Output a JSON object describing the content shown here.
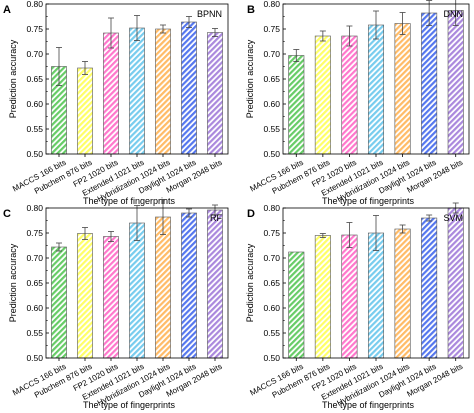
{
  "figure": {
    "shared_categories": [
      "MACCS 166 bits",
      "Pubchem 876 bits",
      "FP2 1020 bits",
      "Extended 1021 bits",
      "Hybridization 1024 bits",
      "Daylight 1024 bits",
      "Morgan 2048 bits"
    ],
    "bar_colors": [
      "#66cc66",
      "#ffff66",
      "#ff77cc",
      "#77ccee",
      "#ffbb66",
      "#5577ee",
      "#aa88dd"
    ],
    "hatch": "diagonal"
  },
  "chart_data": [
    {
      "panel_letter": "A",
      "model_label": "BPNN",
      "type": "bar",
      "categories": [
        "MACCS 166 bits",
        "Pubchem 876 bits",
        "FP2 1020 bits",
        "Extended 1021 bits",
        "Hybridization 1024 bits",
        "Daylight 1024 bits",
        "Morgan 2048 bits"
      ],
      "values": [
        0.675,
        0.672,
        0.742,
        0.752,
        0.75,
        0.764,
        0.743
      ],
      "errors": [
        0.038,
        0.013,
        0.03,
        0.025,
        0.008,
        0.011,
        0.008
      ],
      "xlabel": "The type of fingerprints",
      "ylabel": "Prediction accuracy",
      "ylim": [
        0.5,
        0.8
      ],
      "yticks": [
        "0.50",
        "0.55",
        "0.60",
        "0.65",
        "0.70",
        "0.75",
        "0.80"
      ],
      "grid": false
    },
    {
      "panel_letter": "B",
      "model_label": "DNN",
      "type": "bar",
      "categories": [
        "MACCS 166 bits",
        "Pubchem 876 bits",
        "FP2 1020 bits",
        "Extended 1021 bits",
        "Hybridization 1024 bits",
        "Daylight 1024 bits",
        "Morgan 2048 bits"
      ],
      "values": [
        0.697,
        0.736,
        0.736,
        0.758,
        0.761,
        0.782,
        0.787
      ],
      "errors": [
        0.012,
        0.01,
        0.02,
        0.028,
        0.022,
        0.025,
        0.03
      ],
      "xlabel": "The type of fingerprints",
      "ylabel": "Prediction accuracy",
      "ylim": [
        0.5,
        0.8
      ],
      "yticks": [
        "0.50",
        "0.55",
        "0.60",
        "0.65",
        "0.70",
        "0.75",
        "0.80"
      ],
      "grid": false
    },
    {
      "panel_letter": "C",
      "model_label": "RF",
      "type": "bar",
      "categories": [
        "MACCS 166 bits",
        "Pubchem 876 bits",
        "FP2 1020 bits",
        "Extended 1021 bits",
        "Hybridization 1024 bits",
        "Daylight 1024 bits",
        "Morgan 2048 bits"
      ],
      "values": [
        0.722,
        0.749,
        0.743,
        0.77,
        0.782,
        0.79,
        0.796
      ],
      "errors": [
        0.008,
        0.012,
        0.01,
        0.035,
        0.035,
        0.008,
        0.01
      ],
      "xlabel": "The type of fingerprints",
      "ylabel": "Prediction accuracy",
      "ylim": [
        0.5,
        0.8
      ],
      "yticks": [
        "0.50",
        "0.55",
        "0.60",
        "0.65",
        "0.70",
        "0.75",
        "0.80"
      ],
      "grid": false
    },
    {
      "panel_letter": "D",
      "model_label": "SVM",
      "type": "bar",
      "categories": [
        "MACCS 166 bits",
        "Pubchem 876 bits",
        "FP2 1020 bits",
        "Extended 1021 bits",
        "Hybridization 1024 bits",
        "Daylight 1024 bits",
        "Morgan 2048 bits"
      ],
      "values": [
        0.712,
        0.745,
        0.746,
        0.75,
        0.758,
        0.78,
        0.8
      ],
      "errors": [
        0.0,
        0.004,
        0.025,
        0.035,
        0.008,
        0.006,
        0.01
      ],
      "xlabel": "The type of fingerprints",
      "ylabel": "Prediction accuracy",
      "ylim": [
        0.5,
        0.8
      ],
      "yticks": [
        "0.50",
        "0.55",
        "0.60",
        "0.65",
        "0.70",
        "0.75",
        "0.80"
      ],
      "grid": false
    }
  ]
}
